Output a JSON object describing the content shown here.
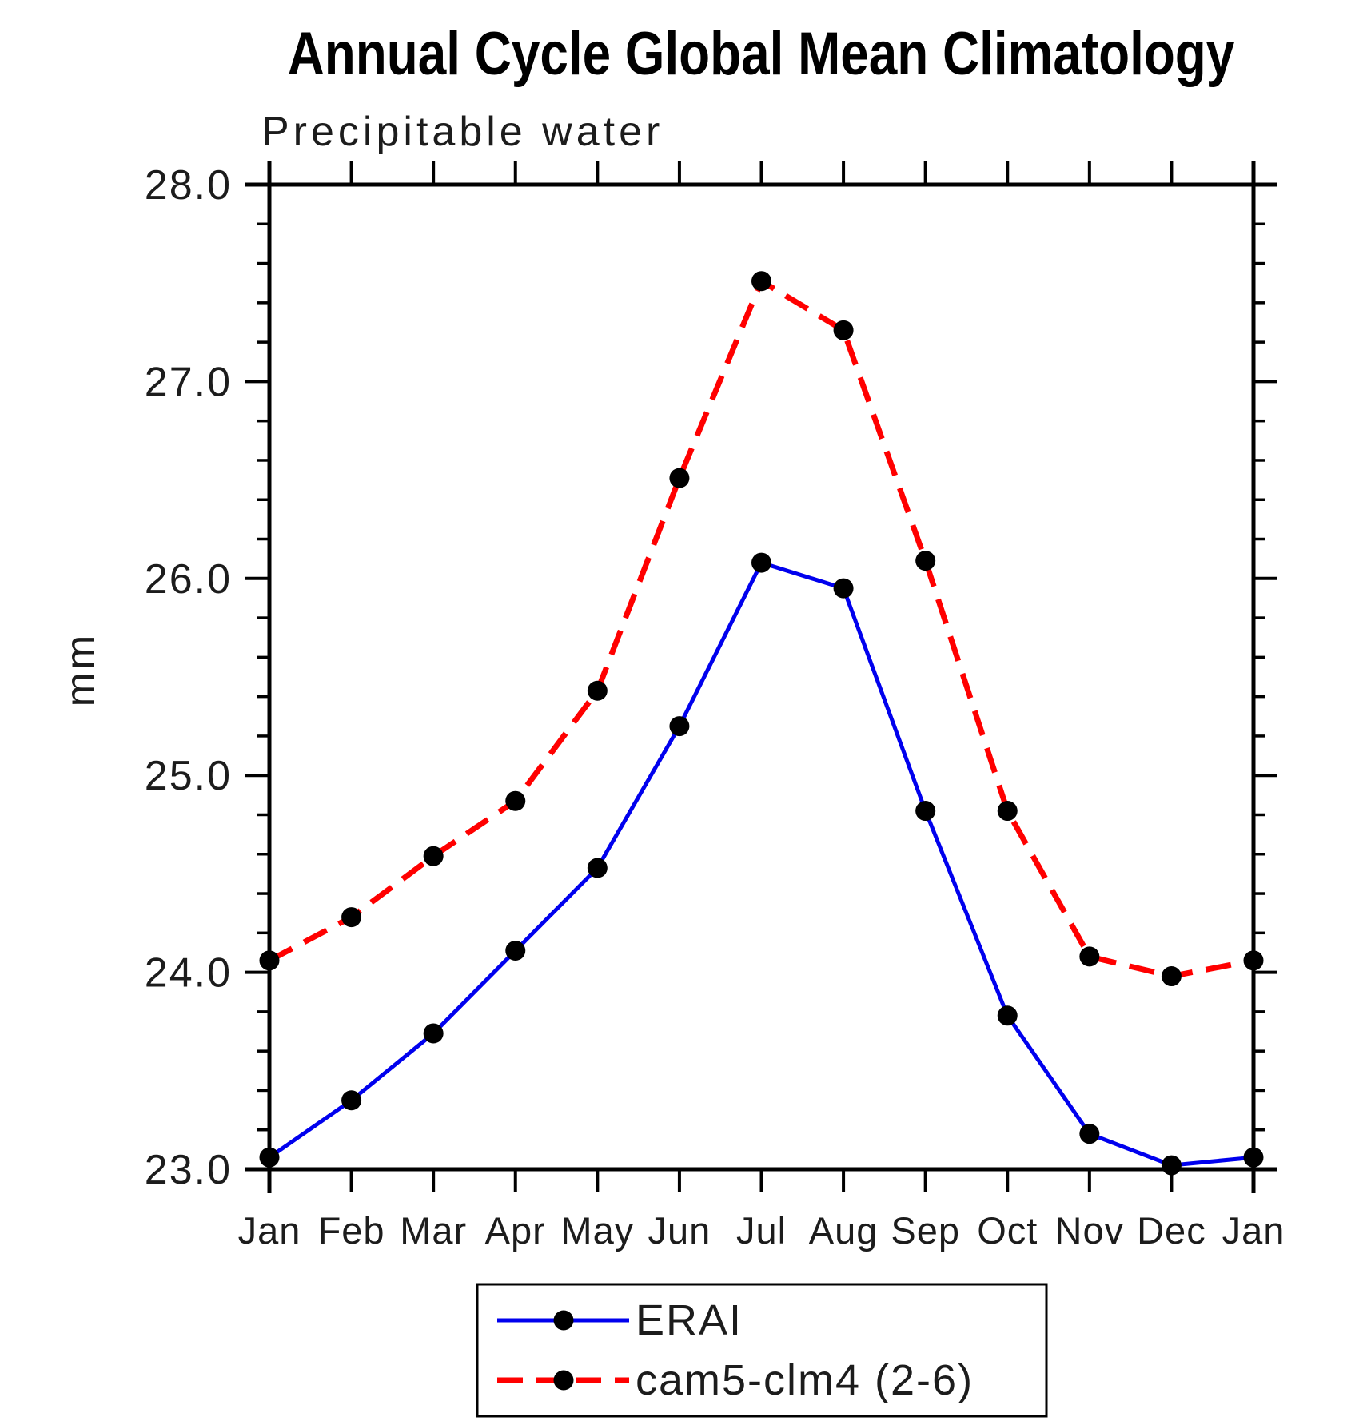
{
  "chart_data": {
    "type": "line",
    "title": "Annual Cycle Global Mean Climatology",
    "subtitle": "Precipitable water",
    "ylabel": "mm",
    "xlabel": "",
    "categories": [
      "Jan",
      "Feb",
      "Mar",
      "Apr",
      "May",
      "Jun",
      "Jul",
      "Aug",
      "Sep",
      "Oct",
      "Nov",
      "Dec",
      "Jan"
    ],
    "ylim": [
      23.0,
      28.0
    ],
    "y_major_tick_labels": [
      "23.0",
      "24.0",
      "25.0",
      "26.0",
      "27.0",
      "28.0"
    ],
    "y_major_step": 1.0,
    "y_minor_step": 0.2,
    "grid": false,
    "legend_position": "bottom-center",
    "series": [
      {
        "name": "ERAI",
        "color": "#0000ee",
        "line_style": "solid",
        "marker": "filled-circle",
        "marker_color": "#000000",
        "values": [
          23.06,
          23.35,
          23.69,
          24.11,
          24.53,
          25.25,
          26.08,
          25.95,
          24.82,
          23.78,
          23.18,
          23.02,
          23.06
        ]
      },
      {
        "name": "cam5-clm4 (2-6)",
        "color": "#ff0000",
        "line_style": "dashed",
        "marker": "filled-circle",
        "marker_color": "#000000",
        "values": [
          24.06,
          24.28,
          24.59,
          24.87,
          25.43,
          26.51,
          27.51,
          27.26,
          26.09,
          24.82,
          24.08,
          23.98,
          24.06
        ]
      }
    ]
  },
  "colors": {
    "axis": "#000000",
    "background": "#ffffff",
    "series_blue": "#0000ee",
    "series_red": "#ff0000",
    "marker_black": "#000000"
  }
}
